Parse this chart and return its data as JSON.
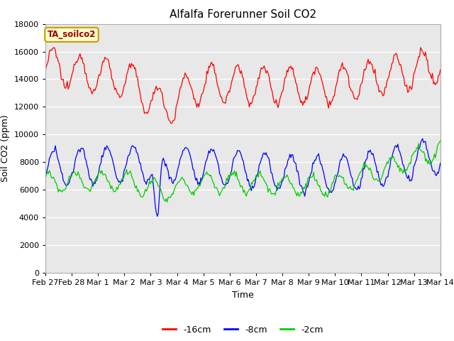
{
  "title": "Alfalfa Forerunner Soil CO2",
  "xlabel": "Time",
  "ylabel": "Soil CO2 (ppm)",
  "sensor_label": "TA_soilco2",
  "ylim": [
    0,
    18000
  ],
  "yticks": [
    0,
    2000,
    4000,
    6000,
    8000,
    10000,
    12000,
    14000,
    16000,
    18000
  ],
  "x_labels": [
    "Feb 27",
    "Feb 28",
    "Mar 1",
    "Mar 2",
    "Mar 3",
    "Mar 4",
    "Mar 5",
    "Mar 6",
    "Mar 7",
    "Mar 8",
    "Mar 9",
    "Mar 10",
    "Mar 11",
    "Mar 12",
    "Mar 13",
    "Mar 14"
  ],
  "background_color": "#ffffff",
  "plot_bg_color": "#e8e8e8",
  "grid_color": "#ffffff",
  "colors": {
    "red": "#ff0000",
    "blue": "#0000ff",
    "green": "#00cc00"
  },
  "legend_labels": [
    "-16cm",
    "-8cm",
    "-2cm"
  ],
  "title_fontsize": 11,
  "axis_label_fontsize": 9,
  "tick_fontsize": 8,
  "sensor_label_color": "#990000",
  "sensor_bbox_facecolor": "#ffffcc",
  "sensor_bbox_edgecolor": "#cc9900"
}
